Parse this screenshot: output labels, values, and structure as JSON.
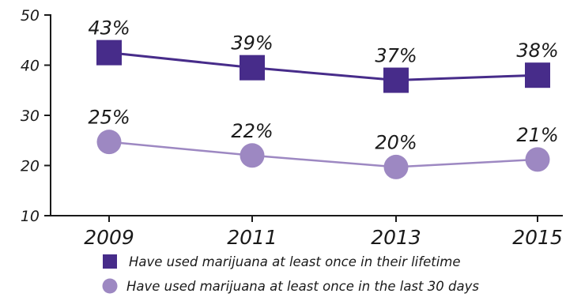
{
  "chart_data": {
    "type": "line",
    "title": "",
    "xlabel": "",
    "ylabel": "",
    "categories": [
      "2009",
      "2011",
      "2013",
      "2015"
    ],
    "ylim": [
      10,
      50
    ],
    "yticks": [
      "10",
      "20",
      "30",
      "40",
      "50"
    ],
    "grid": false,
    "legend_position": "bottom",
    "series": [
      {
        "name": "Have used marijuana at least once in their lifetime",
        "values": [
          43,
          39,
          37,
          38
        ],
        "plot_values": [
          42.5,
          39.5,
          37,
          38
        ],
        "labels": [
          "43%",
          "39%",
          "37%",
          "38%"
        ],
        "marker": "square",
        "color": "#472c8a"
      },
      {
        "name": "Have used marijuana at least once in the last 30 days",
        "values": [
          25,
          22,
          20,
          21
        ],
        "plot_values": [
          24.7,
          22,
          19.7,
          21.2
        ],
        "labels": [
          "25%",
          "22%",
          "20%",
          "21%"
        ],
        "marker": "circle",
        "color": "#9d88c2"
      }
    ]
  }
}
